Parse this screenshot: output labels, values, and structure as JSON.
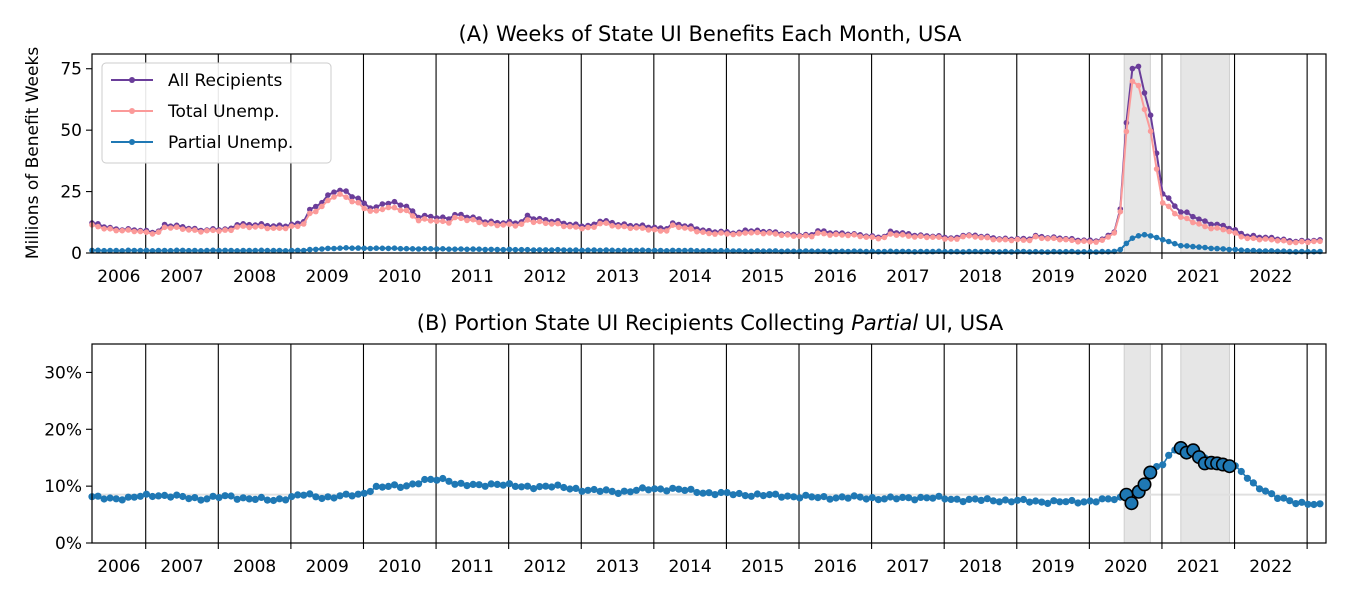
{
  "chart_data": [
    {
      "type": "line",
      "title": "(A) Weeks of State UI Benefits Each Month, USA",
      "ylabel": "Millions of Benefit Weeks",
      "xlabel": "",
      "xlim": [
        2006.0,
        2023.0
      ],
      "ylim": [
        0,
        81
      ],
      "yticks": [
        0,
        25,
        50,
        75
      ],
      "x_tick_labels": [
        "2006",
        "2007",
        "2008",
        "2009",
        "2010",
        "2011",
        "2012",
        "2013",
        "2014",
        "2015",
        "2016",
        "2017",
        "2018",
        "2019",
        "2020",
        "2021",
        "2022"
      ],
      "legend": "top-left",
      "shaded_periods": [
        [
          2020.22,
          2020.58
        ],
        [
          2021.0,
          2021.67
        ]
      ],
      "colors": {
        "all": "#6a3d9a",
        "total": "#fb9a99",
        "partial": "#1f78b4",
        "shade": "#e6e6e6"
      },
      "series": [
        {
          "name": "All Recipients",
          "anchors": [
            [
              2006.0,
              12
            ],
            [
              2006.3,
              10
            ],
            [
              2006.9,
              8.5
            ],
            [
              2007.0,
              11.5
            ],
            [
              2007.5,
              9.5
            ],
            [
              2007.9,
              9.5
            ],
            [
              2008.0,
              12
            ],
            [
              2008.5,
              11
            ],
            [
              2008.9,
              12
            ],
            [
              2009.0,
              17
            ],
            [
              2009.2,
              22
            ],
            [
              2009.35,
              26
            ],
            [
              2009.6,
              23
            ],
            [
              2009.9,
              18
            ],
            [
              2010.0,
              20
            ],
            [
              2010.3,
              20
            ],
            [
              2010.5,
              15
            ],
            [
              2010.9,
              14
            ],
            [
              2011.0,
              16
            ],
            [
              2011.4,
              13
            ],
            [
              2011.9,
              12
            ],
            [
              2012.0,
              15
            ],
            [
              2012.5,
              12
            ],
            [
              2012.9,
              11
            ],
            [
              2013.0,
              13
            ],
            [
              2013.5,
              11
            ],
            [
              2013.9,
              10
            ],
            [
              2014.0,
              12
            ],
            [
              2014.5,
              9
            ],
            [
              2014.9,
              8
            ],
            [
              2015.0,
              9.5
            ],
            [
              2015.5,
              8
            ],
            [
              2015.9,
              7
            ],
            [
              2016.0,
              9
            ],
            [
              2016.5,
              7.5
            ],
            [
              2016.9,
              6.5
            ],
            [
              2017.0,
              8.5
            ],
            [
              2017.5,
              7
            ],
            [
              2017.9,
              6
            ],
            [
              2018.0,
              7.5
            ],
            [
              2018.5,
              6
            ],
            [
              2018.9,
              5.5
            ],
            [
              2019.0,
              7
            ],
            [
              2019.5,
              5.5
            ],
            [
              2019.9,
              5
            ],
            [
              2020.0,
              7
            ],
            [
              2020.15,
              10
            ],
            [
              2020.25,
              55
            ],
            [
              2020.33,
              77
            ],
            [
              2020.45,
              73
            ],
            [
              2020.58,
              55
            ],
            [
              2020.75,
              25
            ],
            [
              2020.9,
              20
            ],
            [
              2021.0,
              17
            ],
            [
              2021.3,
              13
            ],
            [
              2021.6,
              11
            ],
            [
              2021.9,
              7
            ],
            [
              2022.0,
              7
            ],
            [
              2022.5,
              5
            ],
            [
              2022.95,
              5
            ]
          ]
        },
        {
          "name": "Total Unemp.",
          "anchors": [
            [
              2006.0,
              11
            ],
            [
              2006.3,
              9.5
            ],
            [
              2006.9,
              8
            ],
            [
              2007.0,
              10.5
            ],
            [
              2007.5,
              9
            ],
            [
              2007.9,
              9
            ],
            [
              2008.0,
              11
            ],
            [
              2008.5,
              10
            ],
            [
              2008.9,
              11
            ],
            [
              2009.0,
              15.5
            ],
            [
              2009.2,
              20
            ],
            [
              2009.35,
              24
            ],
            [
              2009.6,
              21
            ],
            [
              2009.9,
              16.5
            ],
            [
              2010.0,
              18
            ],
            [
              2010.3,
              18
            ],
            [
              2010.5,
              13.5
            ],
            [
              2010.9,
              12.5
            ],
            [
              2011.0,
              14.5
            ],
            [
              2011.4,
              12
            ],
            [
              2011.9,
              11
            ],
            [
              2012.0,
              13.5
            ],
            [
              2012.5,
              11
            ],
            [
              2012.9,
              10
            ],
            [
              2013.0,
              12
            ],
            [
              2013.5,
              10
            ],
            [
              2013.9,
              9
            ],
            [
              2014.0,
              11
            ],
            [
              2014.5,
              8
            ],
            [
              2014.9,
              7.5
            ],
            [
              2015.0,
              8.5
            ],
            [
              2015.5,
              7.5
            ],
            [
              2015.9,
              6.5
            ],
            [
              2016.0,
              8
            ],
            [
              2016.5,
              7
            ],
            [
              2016.9,
              6
            ],
            [
              2017.0,
              7.5
            ],
            [
              2017.5,
              6.5
            ],
            [
              2017.9,
              5.5
            ],
            [
              2018.0,
              7
            ],
            [
              2018.5,
              5.5
            ],
            [
              2018.9,
              5
            ],
            [
              2019.0,
              6.5
            ],
            [
              2019.5,
              5
            ],
            [
              2019.9,
              4.5
            ],
            [
              2020.0,
              6.5
            ],
            [
              2020.15,
              9.5
            ],
            [
              2020.25,
              52
            ],
            [
              2020.33,
              70
            ],
            [
              2020.45,
              66
            ],
            [
              2020.58,
              48
            ],
            [
              2020.75,
              21
            ],
            [
              2020.9,
              17
            ],
            [
              2021.0,
              14.5
            ],
            [
              2021.3,
              11
            ],
            [
              2021.6,
              9.5
            ],
            [
              2021.9,
              6
            ],
            [
              2022.0,
              6
            ],
            [
              2022.5,
              4.5
            ],
            [
              2022.95,
              4.5
            ]
          ]
        },
        {
          "name": "Partial Unemp.",
          "anchors": [
            [
              2006.0,
              1
            ],
            [
              2008.9,
              1
            ],
            [
              2009.2,
              1.8
            ],
            [
              2009.5,
              2
            ],
            [
              2010.0,
              1.9
            ],
            [
              2010.5,
              1.7
            ],
            [
              2011.0,
              1.6
            ],
            [
              2012.0,
              1.3
            ],
            [
              2013.0,
              1.1
            ],
            [
              2014.0,
              1
            ],
            [
              2015.0,
              0.8
            ],
            [
              2016.0,
              0.7
            ],
            [
              2017.0,
              0.6
            ],
            [
              2018.0,
              0.55
            ],
            [
              2019.0,
              0.5
            ],
            [
              2020.0,
              0.5
            ],
            [
              2020.15,
              0.8
            ],
            [
              2020.25,
              4
            ],
            [
              2020.35,
              6.5
            ],
            [
              2020.5,
              7.5
            ],
            [
              2020.7,
              6
            ],
            [
              2020.9,
              4
            ],
            [
              2021.0,
              3
            ],
            [
              2021.5,
              1.8
            ],
            [
              2021.9,
              1
            ],
            [
              2022.5,
              0.6
            ],
            [
              2022.95,
              0.5
            ]
          ]
        }
      ]
    },
    {
      "type": "scatter",
      "title_parts": [
        "(B) Portion State UI Recipients Collecting ",
        "Partial",
        " UI, USA"
      ],
      "xlabel": "",
      "ylabel": "",
      "xlim": [
        2006.0,
        2023.0
      ],
      "ylim": [
        0,
        35
      ],
      "yticks": [
        0,
        10,
        20,
        30
      ],
      "ytick_labels": [
        "0%",
        "10%",
        "20%",
        "30%"
      ],
      "x_tick_labels": [
        "2006",
        "2007",
        "2008",
        "2009",
        "2010",
        "2011",
        "2012",
        "2013",
        "2014",
        "2015",
        "2016",
        "2017",
        "2018",
        "2019",
        "2020",
        "2021",
        "2022"
      ],
      "reference_line": 8.5,
      "shaded_periods": [
        [
          2020.22,
          2020.58
        ],
        [
          2021.0,
          2021.67
        ]
      ],
      "colors": {
        "points": "#1f78b4",
        "ref": "#e0e0e0",
        "shade": "#e6e6e6",
        "highlight_edge": "#000000"
      },
      "series": [
        {
          "name": "",
          "anchors": [
            [
              2006.0,
              8
            ],
            [
              2006.5,
              7.8
            ],
            [
              2006.8,
              8.5
            ],
            [
              2007.0,
              8.3
            ],
            [
              2007.5,
              7.8
            ],
            [
              2007.9,
              8.2
            ],
            [
              2008.0,
              8
            ],
            [
              2008.5,
              7.5
            ],
            [
              2008.9,
              8.5
            ],
            [
              2009.2,
              8
            ],
            [
              2009.7,
              8.5
            ],
            [
              2009.9,
              9.8
            ],
            [
              2010.3,
              10
            ],
            [
              2010.6,
              11
            ],
            [
              2010.9,
              11.2
            ],
            [
              2011.0,
              10.5
            ],
            [
              2011.3,
              10
            ],
            [
              2011.6,
              10.5
            ],
            [
              2011.9,
              9.8
            ],
            [
              2012.3,
              10
            ],
            [
              2012.9,
              9.2
            ],
            [
              2013.3,
              9
            ],
            [
              2013.7,
              9.5
            ],
            [
              2014.0,
              9.5
            ],
            [
              2014.5,
              8.8
            ],
            [
              2015.0,
              8.5
            ],
            [
              2015.5,
              8.3
            ],
            [
              2016.0,
              8
            ],
            [
              2016.5,
              8
            ],
            [
              2017.0,
              7.8
            ],
            [
              2017.5,
              8
            ],
            [
              2018.0,
              7.6
            ],
            [
              2018.5,
              7.5
            ],
            [
              2019.0,
              7.3
            ],
            [
              2019.5,
              7.2
            ],
            [
              2019.9,
              7.5
            ],
            [
              2020.15,
              7.8
            ],
            [
              2020.25,
              8.5
            ],
            [
              2020.3,
              7
            ],
            [
              2020.4,
              9
            ],
            [
              2020.5,
              10.5
            ],
            [
              2020.58,
              12.5
            ],
            [
              2020.75,
              14
            ],
            [
              2020.9,
              16.5
            ],
            [
              2021.0,
              16.5
            ],
            [
              2021.2,
              15.5
            ],
            [
              2021.4,
              14.5
            ],
            [
              2021.6,
              14
            ],
            [
              2021.8,
              13
            ],
            [
              2022.0,
              10.5
            ],
            [
              2022.3,
              8
            ],
            [
              2022.6,
              7.2
            ],
            [
              2022.95,
              6.5
            ]
          ],
          "highlighted": [
            [
              2020.25,
              8.5
            ],
            [
              2020.32,
              7
            ],
            [
              2020.42,
              9
            ],
            [
              2020.5,
              10.3
            ],
            [
              2020.58,
              12.4
            ],
            [
              2021.0,
              16.7
            ],
            [
              2021.08,
              15.9
            ],
            [
              2021.17,
              16.3
            ],
            [
              2021.25,
              15.1
            ],
            [
              2021.33,
              14
            ],
            [
              2021.42,
              14.1
            ],
            [
              2021.5,
              14
            ],
            [
              2021.58,
              13.8
            ],
            [
              2021.67,
              13.5
            ]
          ]
        }
      ]
    }
  ]
}
